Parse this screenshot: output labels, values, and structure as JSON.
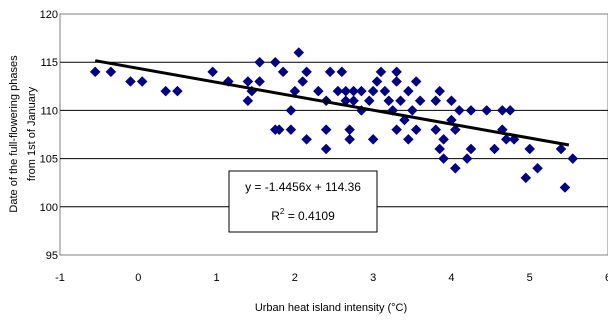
{
  "chart_data": {
    "type": "scatter",
    "title": "",
    "xlabel": "Urban heat island intensity (°C)",
    "ylabel_lines": [
      "Date of the full-flowering phases",
      "from 1st of January"
    ],
    "xlim": [
      -1,
      6
    ],
    "ylim": [
      95,
      120
    ],
    "x_ticks": [
      -1,
      0,
      1,
      2,
      3,
      4,
      5,
      6
    ],
    "y_ticks": [
      95,
      100,
      105,
      110,
      115,
      120
    ],
    "grid": "horizontal",
    "marker": "diamond",
    "marker_color": "#000080",
    "trendline": {
      "slope": -1.4456,
      "intercept": 114.36,
      "x_range": [
        -0.55,
        5.5
      ],
      "color": "#000000",
      "equation": "y = -1.4456x + 114.36",
      "r2_prefix": "R",
      "r2_sup": "2",
      "r2_value": " = 0.4109"
    },
    "points": [
      [
        -0.55,
        114
      ],
      [
        -0.35,
        114
      ],
      [
        -0.1,
        113
      ],
      [
        0.05,
        113
      ],
      [
        0.35,
        112
      ],
      [
        0.5,
        112
      ],
      [
        0.95,
        114
      ],
      [
        1.15,
        113
      ],
      [
        1.4,
        113
      ],
      [
        1.4,
        111
      ],
      [
        1.45,
        112
      ],
      [
        1.55,
        115
      ],
      [
        1.55,
        113
      ],
      [
        1.75,
        115
      ],
      [
        1.75,
        108
      ],
      [
        1.8,
        108
      ],
      [
        1.85,
        114
      ],
      [
        1.95,
        110
      ],
      [
        1.95,
        108
      ],
      [
        2.0,
        112
      ],
      [
        2.05,
        116
      ],
      [
        2.1,
        113
      ],
      [
        2.15,
        114
      ],
      [
        2.15,
        107
      ],
      [
        2.3,
        112
      ],
      [
        2.4,
        111
      ],
      [
        2.4,
        108
      ],
      [
        2.4,
        106
      ],
      [
        2.45,
        114
      ],
      [
        2.55,
        112
      ],
      [
        2.6,
        114
      ],
      [
        2.65,
        112
      ],
      [
        2.65,
        111
      ],
      [
        2.7,
        108
      ],
      [
        2.7,
        107
      ],
      [
        2.75,
        112
      ],
      [
        2.75,
        111
      ],
      [
        2.85,
        110
      ],
      [
        2.85,
        112
      ],
      [
        2.95,
        111
      ],
      [
        3.0,
        112
      ],
      [
        3.0,
        107
      ],
      [
        3.05,
        113
      ],
      [
        3.1,
        114
      ],
      [
        3.15,
        112
      ],
      [
        3.2,
        111
      ],
      [
        3.25,
        110
      ],
      [
        3.3,
        114
      ],
      [
        3.3,
        113
      ],
      [
        3.3,
        108
      ],
      [
        3.35,
        111
      ],
      [
        3.4,
        109
      ],
      [
        3.45,
        112
      ],
      [
        3.45,
        107
      ],
      [
        3.5,
        110
      ],
      [
        3.55,
        108
      ],
      [
        3.55,
        113
      ],
      [
        3.6,
        111
      ],
      [
        3.8,
        111
      ],
      [
        3.8,
        108
      ],
      [
        3.85,
        112
      ],
      [
        3.85,
        106
      ],
      [
        3.9,
        107
      ],
      [
        3.9,
        105
      ],
      [
        4.0,
        111
      ],
      [
        4.0,
        109
      ],
      [
        4.05,
        108
      ],
      [
        4.05,
        104
      ],
      [
        4.1,
        110
      ],
      [
        4.2,
        105
      ],
      [
        4.25,
        110
      ],
      [
        4.25,
        106
      ],
      [
        4.45,
        110
      ],
      [
        4.55,
        106
      ],
      [
        4.65,
        110
      ],
      [
        4.65,
        108
      ],
      [
        4.7,
        107
      ],
      [
        4.75,
        110
      ],
      [
        4.8,
        107
      ],
      [
        4.95,
        103
      ],
      [
        5.0,
        106
      ],
      [
        5.1,
        104
      ],
      [
        5.4,
        106
      ],
      [
        5.45,
        102
      ],
      [
        5.55,
        105
      ]
    ]
  }
}
